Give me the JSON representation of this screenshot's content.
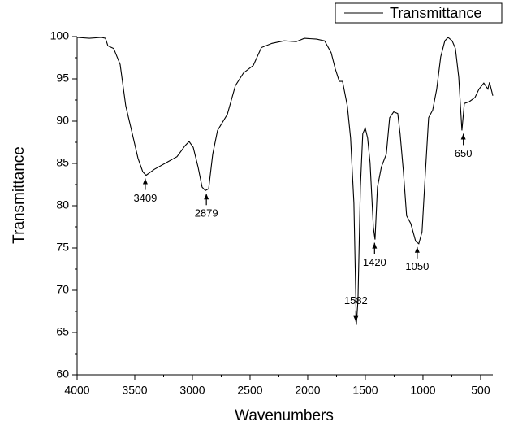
{
  "chart_data": {
    "type": "line",
    "x_label": "Wavenumbers",
    "y_label": "Transmittance",
    "x": [
      4000,
      3894,
      3789,
      3754,
      3733,
      3683,
      3627,
      3578,
      3521,
      3472,
      3430,
      3402,
      3331,
      3226,
      3134,
      3064,
      3029,
      2993,
      2951,
      2916,
      2888,
      2859,
      2824,
      2782,
      2697,
      2627,
      2557,
      2472,
      2402,
      2310,
      2205,
      2099,
      2029,
      1923,
      1853,
      1796,
      1761,
      1726,
      1698,
      1656,
      1628,
      1599,
      1578,
      1564,
      1543,
      1522,
      1501,
      1480,
      1459,
      1430,
      1416,
      1395,
      1360,
      1318,
      1289,
      1254,
      1219,
      1198,
      1170,
      1142,
      1106,
      1064,
      1036,
      1008,
      980,
      951,
      916,
      881,
      846,
      810,
      782,
      747,
      719,
      690,
      662,
      641,
      599,
      549,
      514,
      472,
      437,
      423,
      394
    ],
    "series": [
      {
        "name": "Transmittance",
        "color": "#000000",
        "values": [
          99.9,
          99.8,
          99.9,
          99.8,
          98.9,
          98.6,
          96.7,
          91.8,
          88.5,
          85.6,
          84.0,
          83.6,
          84.3,
          85.1,
          85.8,
          87.1,
          87.6,
          86.9,
          84.6,
          82.2,
          81.8,
          82.0,
          86.1,
          88.9,
          90.8,
          94.2,
          95.7,
          96.6,
          98.7,
          99.2,
          99.5,
          99.4,
          99.8,
          99.7,
          99.5,
          98.1,
          96.2,
          94.7,
          94.7,
          91.8,
          88.0,
          80.3,
          65.9,
          68.8,
          82.2,
          88.5,
          89.2,
          88.0,
          85.1,
          77.4,
          76.0,
          82.2,
          84.6,
          86.1,
          90.4,
          91.1,
          90.9,
          88.5,
          84.1,
          78.8,
          77.9,
          75.8,
          75.5,
          76.9,
          83.7,
          90.4,
          91.3,
          93.8,
          97.6,
          99.5,
          99.9,
          99.5,
          98.6,
          95.2,
          88.9,
          92.1,
          92.3,
          92.8,
          93.8,
          94.5,
          93.8,
          94.6,
          93.0
        ]
      }
    ],
    "peaks": [
      {
        "x": 3409,
        "y": 83.6
      },
      {
        "x": 2879,
        "y": 81.8
      },
      {
        "x": 1582,
        "y": 65.9
      },
      {
        "x": 1420,
        "y": 76.0
      },
      {
        "x": 1050,
        "y": 75.5
      },
      {
        "x": 650,
        "y": 88.9
      }
    ],
    "xlim": [
      4000,
      394
    ],
    "ylim": [
      60,
      100
    ],
    "xticks": [
      4000,
      3500,
      3000,
      2500,
      2000,
      1500,
      1000,
      500
    ],
    "yticks": [
      60,
      65,
      70,
      75,
      80,
      85,
      90,
      95,
      100
    ],
    "legend": "top-right"
  }
}
